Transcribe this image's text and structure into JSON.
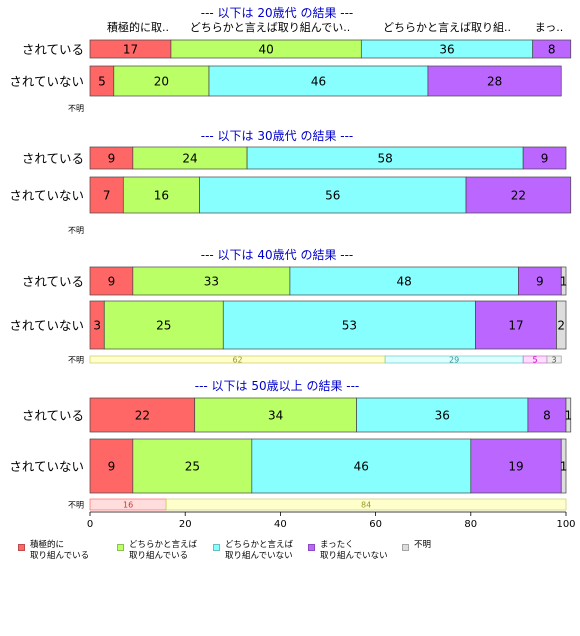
{
  "chart_data": {
    "type": "bar",
    "orientation": "horizontal",
    "stacked": "percent",
    "xlim": [
      0,
      100
    ],
    "xticks": [
      0,
      20,
      40,
      60,
      80,
      100
    ],
    "categories": [
      "積極的に\n取り組んでいる",
      "どちらかと言えば\n取り組んでいる",
      "どちらかと言えば\n取り組んでいない",
      "まったく\n取り組んでいない",
      "不明"
    ],
    "colors": [
      "#ff6666",
      "#bbff66",
      "#88ffff",
      "#bb66ff",
      "#dddddd"
    ],
    "header_labels": [
      "積極的に取..",
      "どちらかと言えば取り組んでい..",
      "どちらかと言えば取り組..",
      "まっ..",
      "不明"
    ],
    "panels": [
      {
        "title": "--- 以下は 20歳代 の結果 ---",
        "rows": [
          {
            "label": "されている",
            "values": [
              17,
              40,
              36,
              8,
              0
            ]
          },
          {
            "label": "されていない",
            "values": [
              5,
              20,
              46,
              28,
              0
            ]
          },
          {
            "label": "不明",
            "values": [
              0,
              0,
              0,
              0,
              0
            ]
          }
        ]
      },
      {
        "title": "--- 以下は 30歳代 の結果 ---",
        "rows": [
          {
            "label": "されている",
            "values": [
              9,
              24,
              58,
              9,
              0
            ]
          },
          {
            "label": "されていない",
            "values": [
              7,
              16,
              56,
              22,
              0
            ]
          },
          {
            "label": "不明",
            "values": [
              0,
              0,
              0,
              0,
              0
            ]
          }
        ]
      },
      {
        "title": "--- 以下は 40歳代 の結果 ---",
        "rows": [
          {
            "label": "されている",
            "values": [
              9,
              33,
              48,
              9,
              1
            ]
          },
          {
            "label": "されていない",
            "values": [
              3,
              25,
              53,
              17,
              2
            ]
          },
          {
            "label": "不明",
            "values": [
              0,
              62,
              29,
              5,
              3
            ]
          }
        ]
      },
      {
        "title": "--- 以下は 50歳以上 の結果 ---",
        "rows": [
          {
            "label": "されている",
            "values": [
              22,
              34,
              36,
              8,
              1
            ]
          },
          {
            "label": "されていない",
            "values": [
              9,
              25,
              46,
              19,
              1
            ]
          },
          {
            "label": "不明",
            "values": [
              16,
              84,
              0,
              0,
              0
            ]
          }
        ]
      }
    ]
  }
}
